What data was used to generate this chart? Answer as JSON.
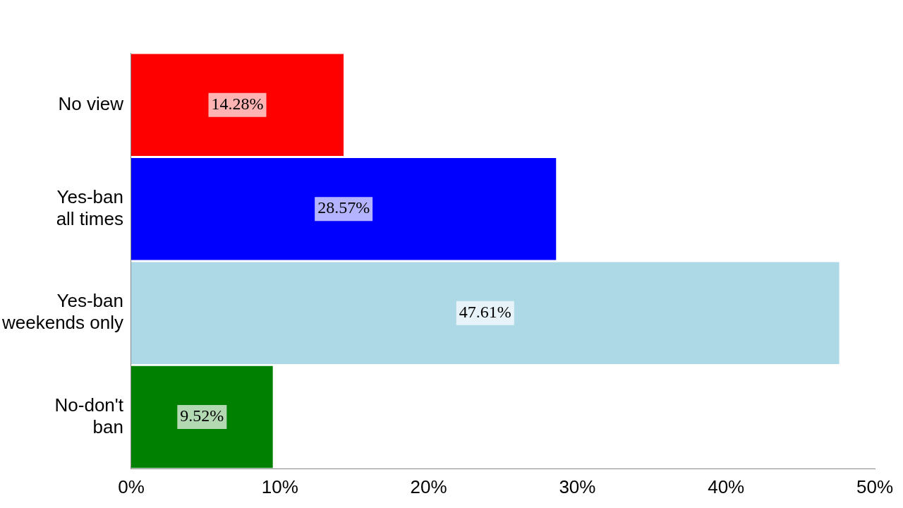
{
  "chart_data": {
    "type": "bar",
    "orientation": "horizontal",
    "categories": [
      "No view",
      "Yes-ban all times",
      "Yes-ban weekends only",
      "No-don't ban"
    ],
    "values": [
      14.28,
      28.57,
      47.61,
      9.52
    ],
    "colors": [
      "#ff0000",
      "#0000ff",
      "#add8e6",
      "#008000"
    ],
    "value_labels": [
      "14.28%",
      "28.57%",
      "47.61%",
      "9.52%"
    ],
    "xlim": [
      0,
      50
    ],
    "xticks": [
      {
        "value": 0,
        "label": "0%"
      },
      {
        "value": 10,
        "label": "10%"
      },
      {
        "value": 20,
        "label": "20%"
      },
      {
        "value": 30,
        "label": "30%"
      },
      {
        "value": 40,
        "label": "40%"
      },
      {
        "value": 50,
        "label": "50%"
      }
    ],
    "grid": false,
    "legend": false
  }
}
